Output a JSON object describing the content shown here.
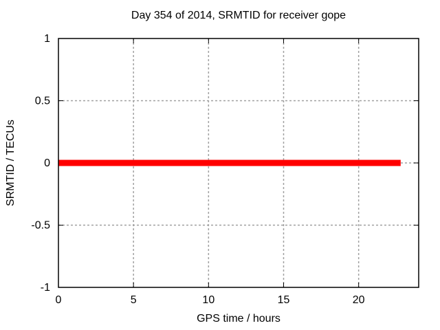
{
  "chart_data": {
    "type": "line",
    "title": "Day 354 of 2014, SRMTID for receiver gope",
    "xlabel": "GPS time / hours",
    "ylabel": "SRMTID / TECUs",
    "xlim": [
      0,
      24
    ],
    "ylim": [
      -1,
      1
    ],
    "xticks": [
      0,
      5,
      10,
      15,
      20
    ],
    "xtick_labels": [
      "0",
      "5",
      "10",
      "15",
      "20"
    ],
    "yticks": [
      1,
      0.5,
      0,
      -0.5,
      -1
    ],
    "ytick_labels": [
      "1",
      "0.5",
      "0",
      "-0.5",
      "-1"
    ],
    "grid": true,
    "grid_style": "dashed",
    "legend": false,
    "border": true,
    "mirror_ticks": true,
    "series": [
      {
        "name": "SRMTID",
        "color": "#ff0000",
        "linewidth": 9,
        "x": [
          0,
          22.8
        ],
        "y": [
          0,
          0
        ]
      }
    ]
  },
  "colors": {
    "background": "#ffffff",
    "border": "#000000",
    "grid": "#a0a0a0",
    "tick": "#000000",
    "text": "#000000",
    "line": "#ff0000"
  }
}
